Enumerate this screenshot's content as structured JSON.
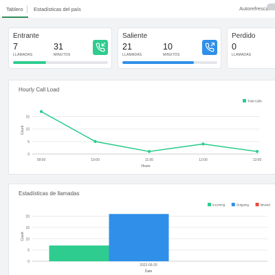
{
  "tabs": {
    "dashboard": "Tablero",
    "country_stats": "Estadísticas del país",
    "auto_refresh": "Autorefrescar"
  },
  "cards": [
    {
      "title": "Entrante",
      "calls_value": "7",
      "calls_unit": "LLAMADAS",
      "minutes_value": "31",
      "minutes_unit": "MINUTOS",
      "icon": "incoming-call-icon",
      "color": "#2ecc8f",
      "progress": 0.35
    },
    {
      "title": "Saliente",
      "calls_value": "21",
      "calls_unit": "LLAMADAS",
      "minutes_value": "10",
      "minutes_unit": "MINUTOS",
      "icon": "outgoing-call-icon",
      "color": "#2f8fe9",
      "progress": 0.75
    },
    {
      "title": "Perdido",
      "calls_value": "0",
      "calls_unit": "LLAMADAS",
      "color": "#e74c3c"
    }
  ],
  "hourly_panel": {
    "title": "Hourly Call Load"
  },
  "stats_panel": {
    "title": "Estadísticas de llamadas"
  },
  "chart_data": [
    {
      "type": "line",
      "title": "Hourly Call Load",
      "xlabel": "Hours",
      "ylabel": "Count",
      "x": [
        "09:00",
        "10:00",
        "11:00",
        "12:00",
        "13:00"
      ],
      "series": [
        {
          "name": "Total Calls",
          "values": [
            17,
            5,
            1,
            4,
            1
          ],
          "color": "#2ecc8f"
        }
      ],
      "yticks": [
        0,
        5,
        10,
        15
      ],
      "ylim": [
        0,
        19
      ],
      "grid": true,
      "legend": "top-right"
    },
    {
      "type": "bar",
      "title": "Estadísticas de llamadas",
      "xlabel": "Date",
      "ylabel": "Count",
      "categories": [
        "2022-09-20"
      ],
      "series": [
        {
          "name": "Incoming",
          "values": [
            7
          ],
          "color": "#2ecc8f"
        },
        {
          "name": "Outgoing",
          "values": [
            21
          ],
          "color": "#2f8fe9"
        },
        {
          "name": "Missed",
          "values": [
            0
          ],
          "color": "#e74c3c"
        }
      ],
      "yticks": [
        0,
        5,
        10,
        15,
        20
      ],
      "ylim": [
        0,
        22
      ],
      "grid": true,
      "legend": "top-right"
    }
  ]
}
